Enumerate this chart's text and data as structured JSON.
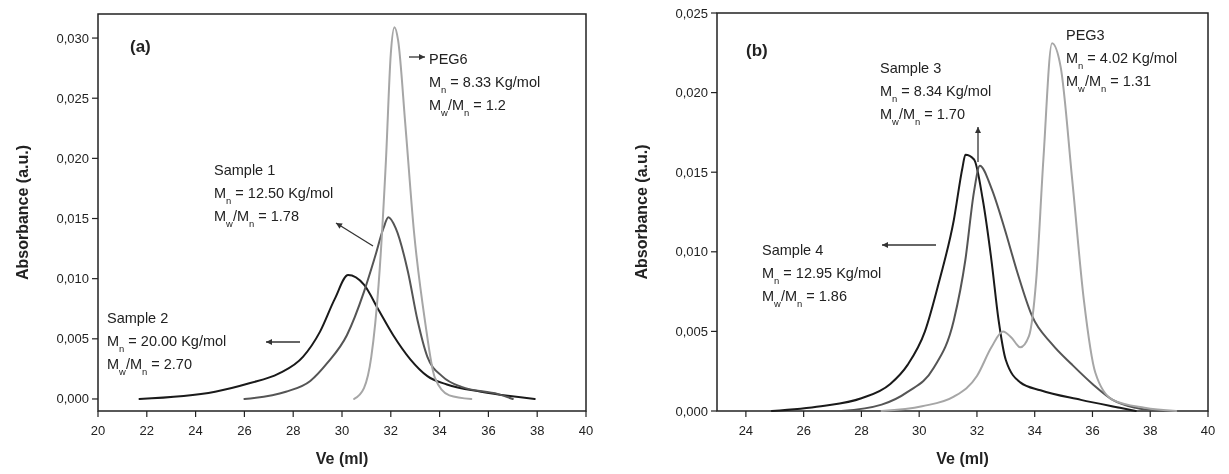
{
  "chart_data": [
    {
      "type": "line",
      "xlabel": "Ve (ml)",
      "ylabel": "Absorbance (a.u.)",
      "xlim": [
        20,
        40
      ],
      "ylim": [
        -0.001,
        0.032
      ],
      "xticks": [
        20,
        22,
        24,
        26,
        28,
        30,
        32,
        34,
        36,
        38,
        40
      ],
      "yticks": [
        {
          "value": 0,
          "label": "0,000"
        },
        {
          "value": 0.005,
          "label": "0,005"
        },
        {
          "value": 0.01,
          "label": "0,010"
        },
        {
          "value": 0.015,
          "label": "0,015"
        },
        {
          "value": 0.02,
          "label": "0,020"
        },
        {
          "value": 0.025,
          "label": "0,025"
        },
        {
          "value": 0.03,
          "label": "0,030"
        }
      ],
      "series": [
        {
          "color": "#1a1a1a",
          "x": [
            21.7,
            24.8,
            26.2,
            27.4,
            28.4,
            29.1,
            29.7,
            30.25,
            30.9,
            31.5,
            32.1,
            32.8,
            33.5,
            34.3,
            35.7,
            37.9
          ],
          "values": [
            0,
            0.0006,
            0.0013,
            0.0021,
            0.0035,
            0.0056,
            0.0083,
            0.0103,
            0.0095,
            0.0074,
            0.0053,
            0.0033,
            0.0019,
            0.0012,
            0.0006,
            0
          ]
        },
        {
          "color": "#555555",
          "x": [
            26,
            27.7,
            28.7,
            29.4,
            30.2,
            30.9,
            31.35,
            31.7,
            31.9,
            32.2,
            32.7,
            33.1,
            33.5,
            34.1,
            34.9,
            36.4,
            37
          ],
          "values": [
            0,
            0.0006,
            0.0015,
            0.003,
            0.0053,
            0.0089,
            0.0118,
            0.0142,
            0.0151,
            0.0142,
            0.0106,
            0.0065,
            0.0035,
            0.0019,
            0.001,
            0.0004,
            0
          ]
        },
        {
          "color": "#a6a6a6",
          "x": [
            30.5,
            30.9,
            31.2,
            31.5,
            31.8,
            32,
            32.15,
            32.3,
            32.6,
            32.95,
            33.4,
            33.8,
            34.4,
            35.3
          ],
          "values": [
            0,
            0.0009,
            0.0035,
            0.0095,
            0.0198,
            0.0287,
            0.0309,
            0.0298,
            0.0227,
            0.0139,
            0.0065,
            0.0018,
            0.0003,
            0
          ]
        }
      ],
      "annotations": [
        "(a)",
        "PEG6",
        "M$_{n}$ = 8.33 Kg/mol",
        "M$_{w}$/M$_{n}$ = 1.2",
        "Sample 1",
        "M$_{n}$ = 12.50 Kg/mol",
        "M$_{w}$/M$_{n}$ = 1.78",
        "Sample 2",
        "M$_{n}$ = 20.00 Kg/mol",
        "M$_{w}$/M$_{n}$ = 2.70"
      ]
    },
    {
      "type": "line",
      "xlabel": "Ve (ml)",
      "ylabel": "Absorbance (a.u.)",
      "xlim": [
        23,
        40
      ],
      "ylim": [
        0,
        0.025
      ],
      "xticks": [
        24,
        26,
        28,
        30,
        32,
        34,
        36,
        38,
        40
      ],
      "yticks": [
        {
          "value": 0,
          "label": "0,000"
        },
        {
          "value": 0.005,
          "label": "0,005"
        },
        {
          "value": 0.01,
          "label": "0,010"
        },
        {
          "value": 0.015,
          "label": "0,015"
        },
        {
          "value": 0.02,
          "label": "0,020"
        },
        {
          "value": 0.025,
          "label": "0,025"
        }
      ],
      "series": [
        {
          "color": "#1a1a1a",
          "x": [
            24.9,
            26.6,
            28,
            29,
            29.6,
            30.2,
            30.7,
            31.2,
            31.5,
            31.6,
            31.9,
            32.2,
            32.5,
            32.75,
            33,
            33.5,
            34.2,
            35.6,
            36.95,
            37.5
          ],
          "values": [
            0,
            0.0003,
            0.0008,
            0.0017,
            0.0029,
            0.005,
            0.0082,
            0.012,
            0.0153,
            0.0161,
            0.0158,
            0.0133,
            0.0095,
            0.0057,
            0.0032,
            0.0018,
            0.0013,
            0.0007,
            0.0002,
            0
          ]
        },
        {
          "color": "#555555",
          "x": [
            27.3,
            28.7,
            29.6,
            30.5,
            31.2,
            31.6,
            31.9,
            32.1,
            32.5,
            32.95,
            33.4,
            33.9,
            34.6,
            35.3,
            36,
            36.7,
            37.5,
            38.3
          ],
          "values": [
            0,
            0.0004,
            0.0012,
            0.0027,
            0.0057,
            0.0095,
            0.0138,
            0.0154,
            0.014,
            0.0115,
            0.0087,
            0.006,
            0.0042,
            0.0029,
            0.0017,
            0.0007,
            0.0002,
            0
          ]
        },
        {
          "color": "#a6a6a6",
          "x": [
            28.7,
            30.1,
            31.2,
            32,
            32.5,
            32.9,
            33.2,
            33.5,
            33.8,
            34.05,
            34.3,
            34.6,
            34.9,
            35.3,
            35.7,
            36.1,
            36.7,
            37.8,
            38.9
          ],
          "values": [
            0,
            0.0003,
            0.0009,
            0.0022,
            0.004,
            0.005,
            0.0046,
            0.004,
            0.0047,
            0.0082,
            0.0158,
            0.0231,
            0.0216,
            0.0145,
            0.007,
            0.0024,
            0.0007,
            0.0002,
            0
          ]
        }
      ],
      "annotations": [
        "(b)",
        "Sample 3",
        "M$_{n}$ = 8.34 Kg/mol",
        "M$_{w}$/M$_{n}$ = 1.70",
        "Sample 4",
        "M$_{n}$ = 12.95 Kg/mol",
        "M$_{w}$/M$_{n}$ = 1.86",
        "PEG3",
        "M$_{n}$ = 4.02 Kg/mol",
        "M$_{w}$/M$_{n}$ = 1.31"
      ]
    }
  ]
}
